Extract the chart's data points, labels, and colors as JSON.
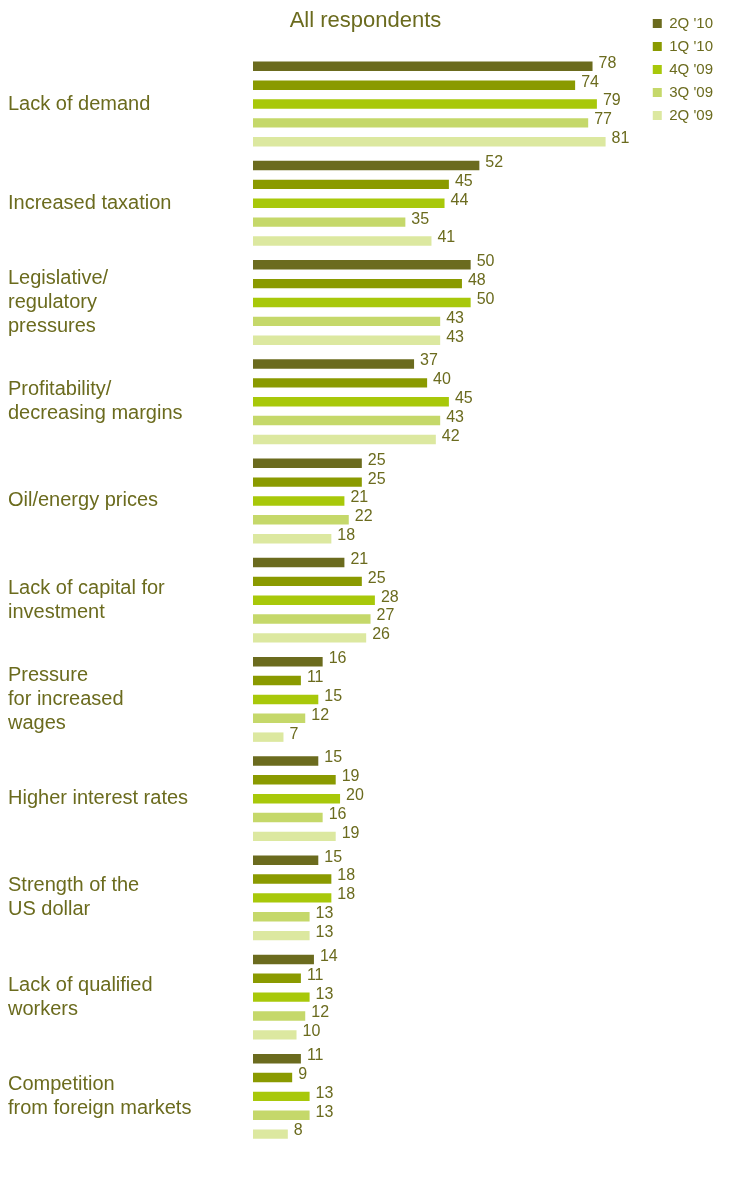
{
  "chart_data": {
    "type": "bar",
    "orientation": "horizontal",
    "title": "All respondents",
    "categories": [
      "Lack of demand",
      "Increased taxation",
      "Legislative/\nregulatory\npressures",
      "Profitability/\ndecreasing margins",
      "Oil/energy prices",
      "Lack of capital for\ninvestment",
      "Pressure\nfor increased\nwages",
      "Higher interest rates",
      "Strength of the\nUS dollar",
      "Lack of qualified\nworkers",
      "Competition\nfrom foreign markets"
    ],
    "series": [
      {
        "name": "2Q '10",
        "color": "#6b6b1e",
        "values": [
          78,
          52,
          50,
          37,
          25,
          21,
          16,
          15,
          15,
          14,
          11
        ]
      },
      {
        "name": "1Q '10",
        "color": "#8a9a00",
        "values": [
          74,
          45,
          48,
          40,
          25,
          25,
          11,
          19,
          18,
          11,
          9
        ]
      },
      {
        "name": "4Q '09",
        "color": "#a8c80a",
        "values": [
          79,
          44,
          50,
          45,
          21,
          28,
          15,
          20,
          18,
          13,
          13
        ]
      },
      {
        "name": "3Q '09",
        "color": "#c5d86a",
        "values": [
          77,
          35,
          43,
          43,
          22,
          27,
          12,
          16,
          13,
          12,
          13
        ]
      },
      {
        "name": "2Q '09",
        "color": "#dce8a0",
        "values": [
          81,
          41,
          43,
          42,
          18,
          26,
          7,
          19,
          13,
          10,
          8
        ]
      }
    ],
    "data_labels": true,
    "legend": "right",
    "grid": false
  }
}
